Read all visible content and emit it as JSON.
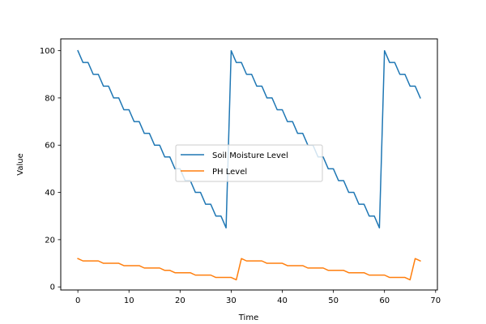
{
  "chart_data": {
    "type": "line",
    "title": "",
    "xlabel": "Time",
    "ylabel": "Value",
    "xlim": [
      -3.35,
      70.35
    ],
    "ylim": [
      -1.3,
      105
    ],
    "xticks": [
      0,
      10,
      20,
      30,
      40,
      50,
      60,
      70
    ],
    "yticks": [
      0,
      20,
      40,
      60,
      80,
      100
    ],
    "grid": false,
    "legend_position": "center",
    "x": [
      0,
      1,
      2,
      3,
      4,
      5,
      6,
      7,
      8,
      9,
      10,
      11,
      12,
      13,
      14,
      15,
      16,
      17,
      18,
      19,
      20,
      21,
      22,
      23,
      24,
      25,
      26,
      27,
      28,
      29,
      30,
      31,
      32,
      33,
      34,
      35,
      36,
      37,
      38,
      39,
      40,
      41,
      42,
      43,
      44,
      45,
      46,
      47,
      48,
      49,
      50,
      51,
      52,
      53,
      54,
      55,
      56,
      57,
      58,
      59,
      60,
      61,
      62,
      63,
      64,
      65,
      66,
      67
    ],
    "series": [
      {
        "name": "Soil Moisture Level",
        "color": "#1f77b4",
        "values": [
          100,
          95,
          95,
          90,
          90,
          85,
          85,
          80,
          80,
          75,
          75,
          70,
          70,
          65,
          65,
          60,
          60,
          55,
          55,
          50,
          50,
          45,
          45,
          40,
          40,
          35,
          35,
          30,
          30,
          25,
          100,
          95,
          95,
          90,
          90,
          85,
          85,
          80,
          80,
          75,
          75,
          70,
          70,
          65,
          65,
          60,
          60,
          55,
          55,
          50,
          50,
          45,
          45,
          40,
          40,
          35,
          35,
          30,
          30,
          25,
          100,
          95,
          95,
          90,
          90,
          85,
          85,
          80
        ]
      },
      {
        "name": "PH Level",
        "color": "#ff7f0e",
        "values": [
          12,
          11,
          11,
          11,
          11,
          10,
          10,
          10,
          10,
          9,
          9,
          9,
          9,
          8,
          8,
          8,
          8,
          7,
          7,
          6,
          6,
          6,
          6,
          5,
          5,
          5,
          5,
          4,
          4,
          4,
          4,
          3,
          12,
          11,
          11,
          11,
          11,
          10,
          10,
          10,
          10,
          9,
          9,
          9,
          9,
          8,
          8,
          8,
          8,
          7,
          7,
          7,
          7,
          6,
          6,
          6,
          6,
          5,
          5,
          5,
          5,
          4,
          4,
          4,
          4,
          3,
          12,
          11
        ]
      }
    ]
  }
}
